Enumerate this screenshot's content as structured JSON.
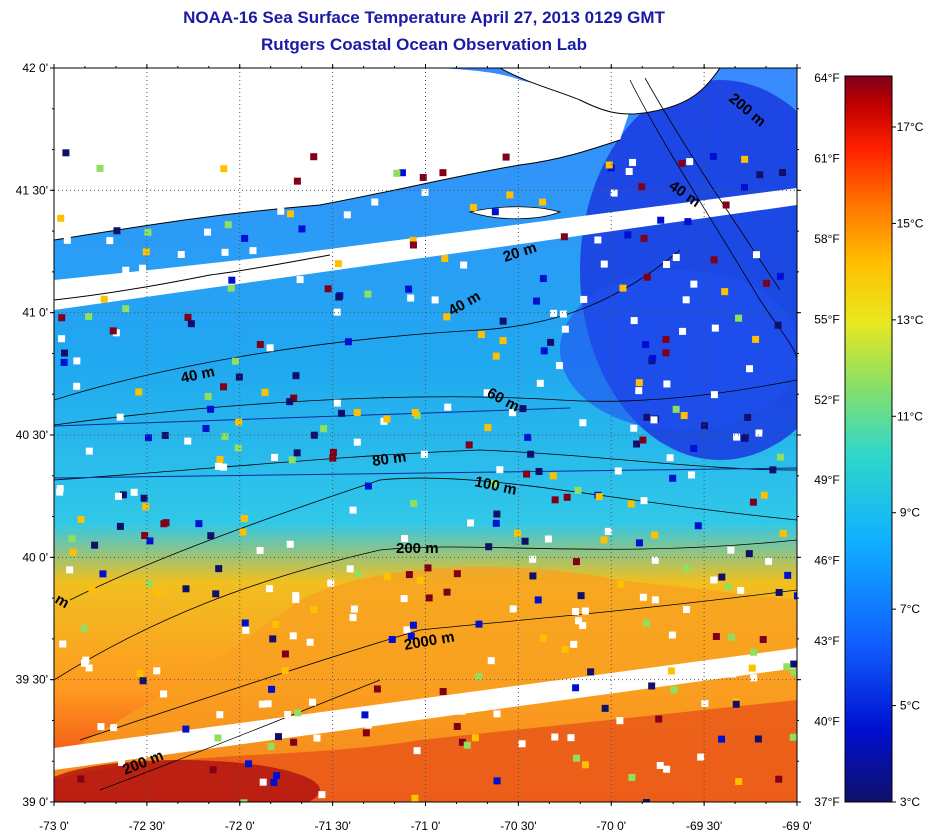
{
  "title_line1": "NOAA-16 Sea Surface Temperature April 27, 2013 0129 GMT",
  "title_line2": "Rutgers Coastal Ocean Observation Lab",
  "lat_ticks": [
    {
      "lat": 42.0,
      "label": "42 0'"
    },
    {
      "lat": 41.5,
      "label": "41 30'"
    },
    {
      "lat": 41.0,
      "label": "41 0'"
    },
    {
      "lat": 40.5,
      "label": "40 30'"
    },
    {
      "lat": 40.0,
      "label": "40 0'"
    },
    {
      "lat": 39.5,
      "label": "39 30'"
    },
    {
      "lat": 39.0,
      "label": "39 0'"
    }
  ],
  "lon_ticks": [
    {
      "lon": -73.0,
      "label": "-73 0'"
    },
    {
      "lon": -72.5,
      "label": "-72 30'"
    },
    {
      "lon": -72.0,
      "label": "-72 0'"
    },
    {
      "lon": -71.5,
      "label": "-71 30'"
    },
    {
      "lon": -71.0,
      "label": "-71 0'"
    },
    {
      "lon": -70.5,
      "label": "-70 30'"
    },
    {
      "lon": -70.0,
      "label": "-70 0'"
    },
    {
      "lon": -69.5,
      "label": "-69 30'"
    },
    {
      "lon": -69.0,
      "label": "-69 0'"
    }
  ],
  "fahrenheit_ticks": [
    "64°F",
    "61°F",
    "58°F",
    "55°F",
    "52°F",
    "49°F",
    "46°F",
    "43°F",
    "40°F",
    "37°F"
  ],
  "celsius_ticks": [
    "17°C",
    "15°C",
    "13°C",
    "11°C",
    "9°C",
    "7°C",
    "5°C",
    "3°C"
  ],
  "contour_labels": [
    "200 m",
    "40 m",
    "20 m",
    "40 m",
    "40 m",
    "60 m",
    "80 m",
    "100 m",
    "200 m",
    "m",
    "2000 m",
    "200 m"
  ],
  "colormap": [
    "#80001a",
    "#c00000",
    "#ff2000",
    "#ff7800",
    "#ffc000",
    "#e8e820",
    "#90e060",
    "#30d8c8",
    "#10b0ff",
    "#1060ff",
    "#0010d0",
    "#10106a"
  ],
  "land_color": "#ffffff",
  "coast_color": "#000000"
}
